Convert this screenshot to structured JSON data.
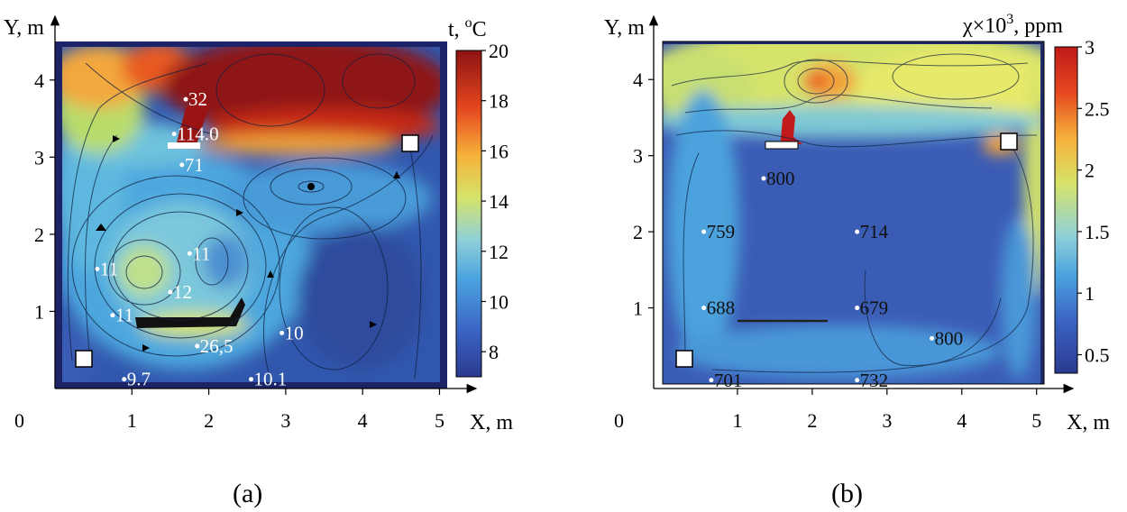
{
  "chart_data": [
    {
      "type": "heatmap",
      "caption": "(a)",
      "xlabel": "X, m",
      "ylabel": "Y, m",
      "origin_label": "0",
      "xlim": [
        0,
        5.1
      ],
      "ylim": [
        0,
        4.5
      ],
      "xticks": [
        1,
        2,
        3,
        4,
        5
      ],
      "yticks": [
        1,
        2,
        3,
        4
      ],
      "colorbar": {
        "label": "t, °C",
        "label_base": "t, ",
        "label_sup": "o",
        "label_unit": "C",
        "range": [
          7,
          20
        ],
        "ticks": [
          8,
          10,
          12,
          14,
          16,
          18,
          20
        ],
        "colors": [
          "#2b3a8f",
          "#3b63c4",
          "#4aa3df",
          "#8fd0d8",
          "#d6e36a",
          "#f6b13a",
          "#e5481f",
          "#8e1212"
        ]
      },
      "points": [
        {
          "x": 1.7,
          "y": 3.75,
          "label": "32"
        },
        {
          "x": 1.55,
          "y": 3.3,
          "label": "114.0"
        },
        {
          "x": 1.65,
          "y": 2.9,
          "label": "71"
        },
        {
          "x": 0.55,
          "y": 1.55,
          "label": "11"
        },
        {
          "x": 1.75,
          "y": 1.75,
          "label": "11"
        },
        {
          "x": 0.75,
          "y": 0.95,
          "label": "11"
        },
        {
          "x": 1.5,
          "y": 1.25,
          "label": "12"
        },
        {
          "x": 1.85,
          "y": 0.55,
          "label": "26,5"
        },
        {
          "x": 2.95,
          "y": 0.72,
          "label": "10"
        },
        {
          "x": 0.9,
          "y": 0.12,
          "label": "9.7"
        },
        {
          "x": 2.55,
          "y": 0.12,
          "label": "10.1"
        }
      ]
    },
    {
      "type": "heatmap",
      "caption": "(b)",
      "xlabel": "X, m",
      "ylabel": "Y, m",
      "origin_label": "0",
      "xlim": [
        0,
        5.1
      ],
      "ylim": [
        0,
        4.5
      ],
      "xticks": [
        1,
        2,
        3,
        4,
        5
      ],
      "yticks": [
        1,
        2,
        3,
        4
      ],
      "colorbar": {
        "label": "χ×10³, ppm",
        "label_base": "χ×10",
        "label_sup": "3",
        "label_unit": ", ppm",
        "range": [
          0.35,
          3.0
        ],
        "ticks": [
          0.5,
          1,
          1.5,
          2,
          2.5,
          3
        ],
        "tick_labels": [
          "0.5",
          "1",
          "1.5",
          "2",
          "2.5",
          "3"
        ],
        "colors": [
          "#2b3a8f",
          "#3b63c4",
          "#4aa3df",
          "#8fd0d8",
          "#d6e36a",
          "#f6b13a",
          "#e5481f",
          "#c21a1a"
        ]
      },
      "points": [
        {
          "x": 1.35,
          "y": 2.7,
          "label": "800"
        },
        {
          "x": 0.55,
          "y": 2.0,
          "label": "759"
        },
        {
          "x": 2.6,
          "y": 2.0,
          "label": "714"
        },
        {
          "x": 0.55,
          "y": 1.0,
          "label": "688"
        },
        {
          "x": 2.6,
          "y": 1.0,
          "label": "679"
        },
        {
          "x": 3.6,
          "y": 0.6,
          "label": "800"
        },
        {
          "x": 0.65,
          "y": 0.05,
          "label": "701"
        },
        {
          "x": 2.6,
          "y": 0.05,
          "label": "732"
        }
      ]
    }
  ]
}
